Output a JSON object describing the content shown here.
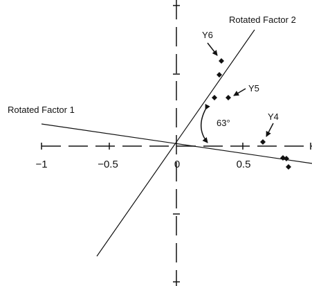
{
  "diagram": {
    "factor1_label": "Rotated Factor 1",
    "factor2_label": "Rotated Factor 2",
    "angle_label": "63°",
    "variable_labels": [
      "Y6",
      "Y5",
      "Y4"
    ],
    "x_tick_labels": [
      "−1",
      "−0.5",
      "0",
      "0.5",
      "1"
    ],
    "colors": {
      "ink": "#111111",
      "background": "#ffffff"
    }
  }
}
